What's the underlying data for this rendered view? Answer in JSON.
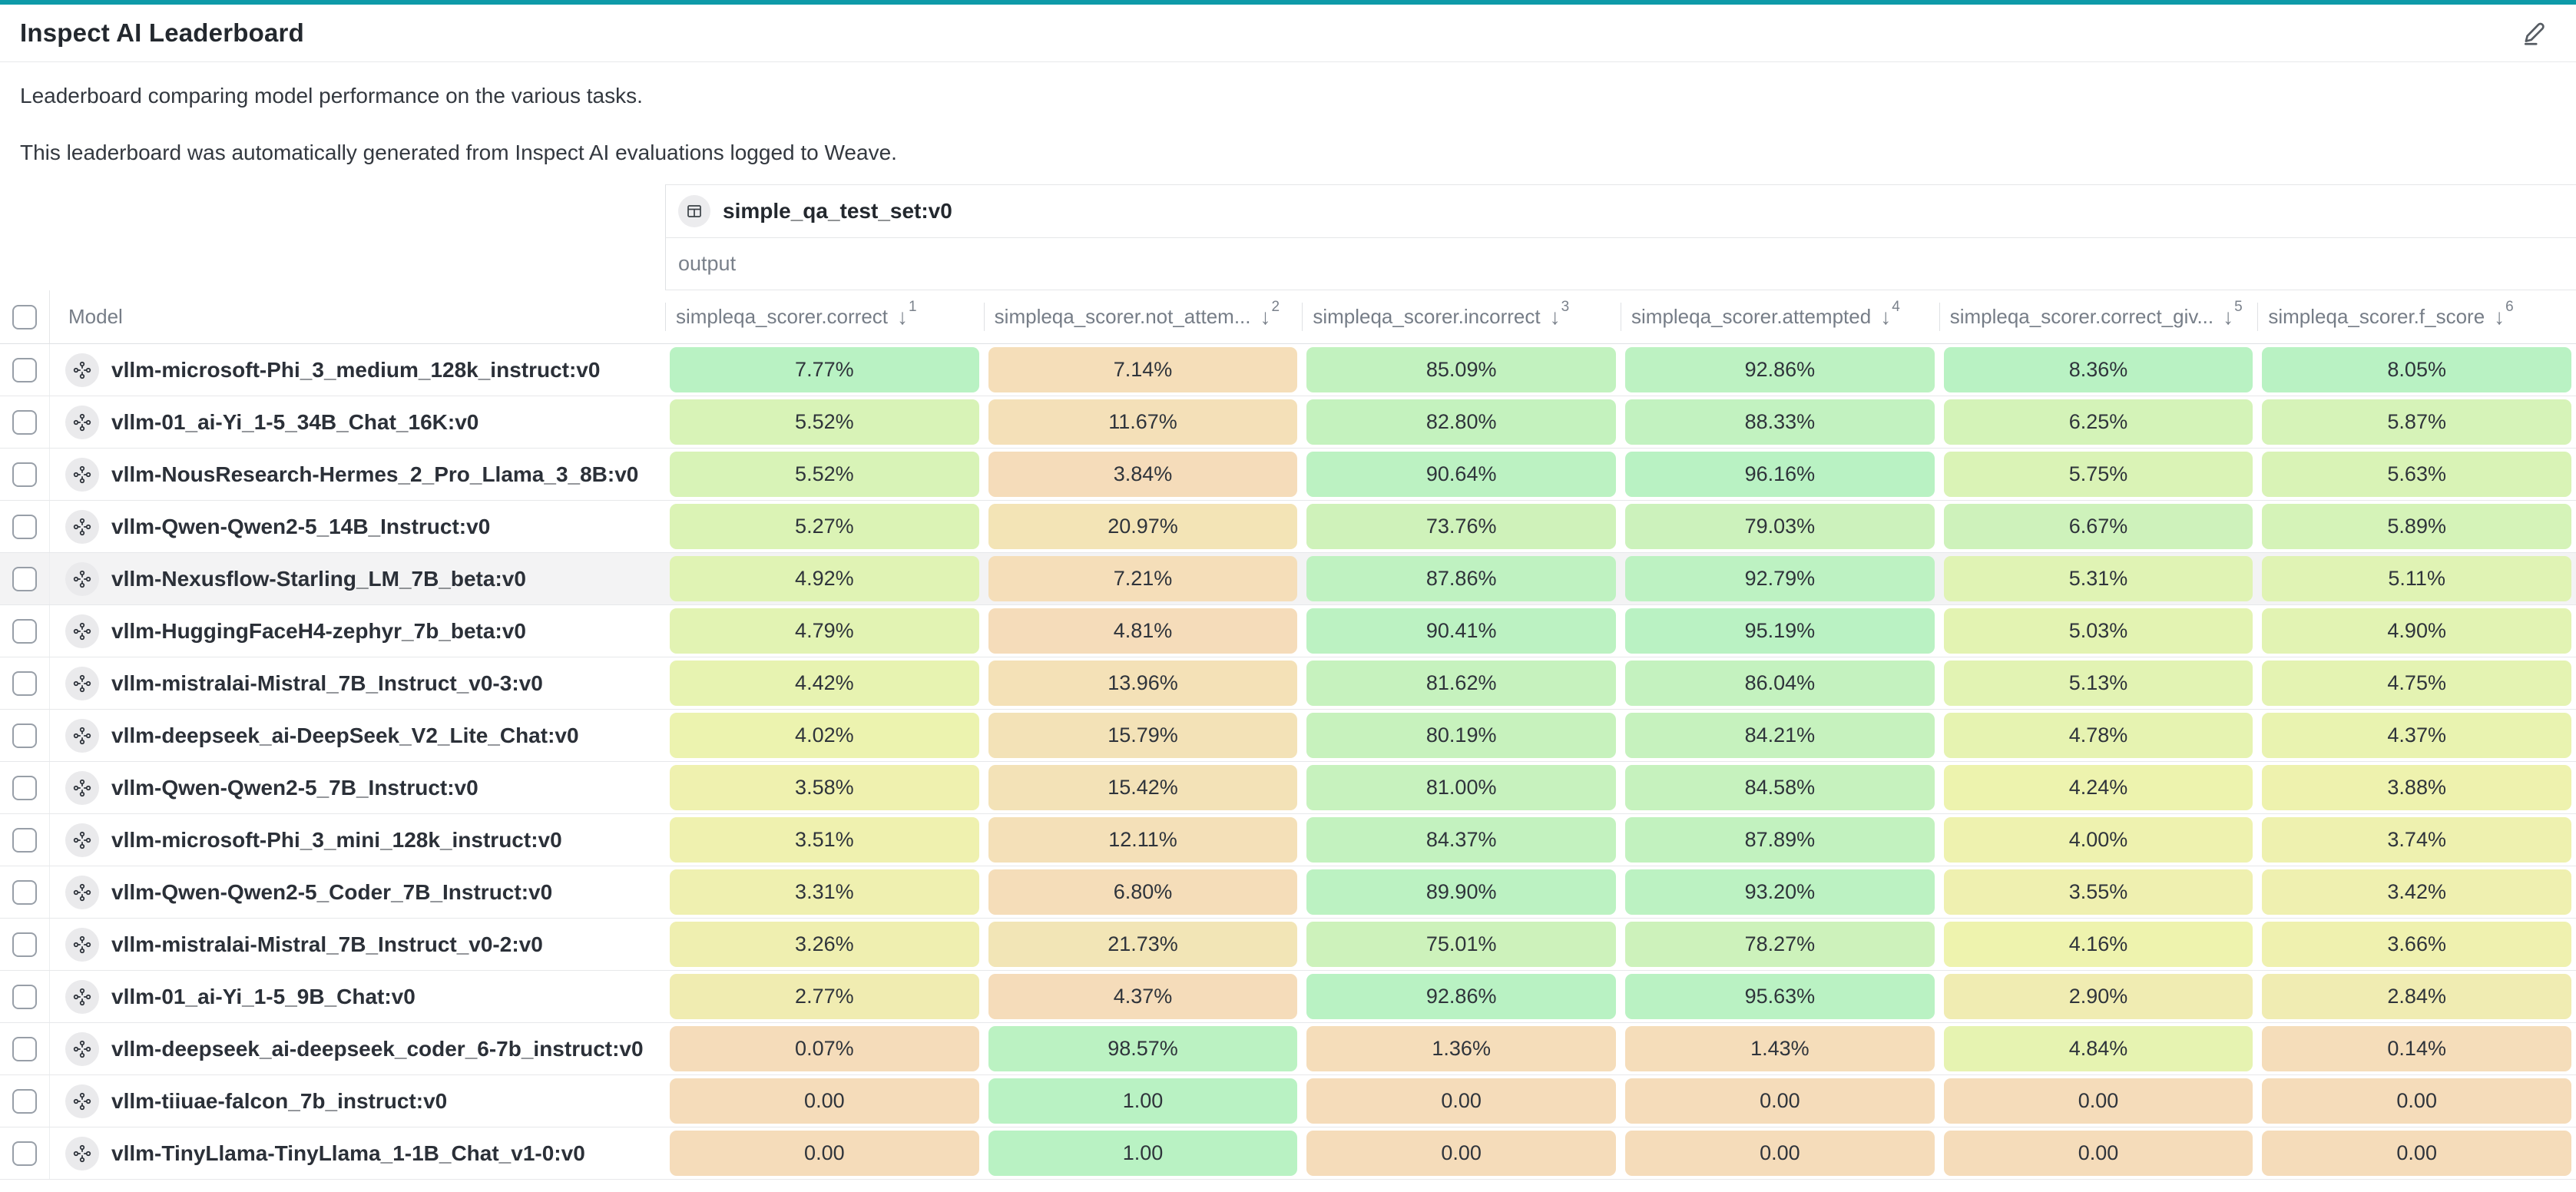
{
  "header": {
    "title": "Inspect AI Leaderboard",
    "accent_color": "#0e9aa8",
    "edit_icon": "pencil-icon"
  },
  "description": {
    "line1": "Leaderboard comparing model performance on the various tasks.",
    "line2": "This leaderboard was automatically generated from Inspect AI evaluations logged to Weave."
  },
  "table": {
    "group_header": "simple_qa_test_set:v0",
    "group_icon": "table-icon",
    "subgroup_header": "output",
    "model_column_label": "Model",
    "row_icon": "model-icon",
    "sort_icon": "arrow-down-icon",
    "hovered_row_index": 4,
    "color_scale": {
      "low": "#f5dcba",
      "mid": "#eef3ae",
      "high": "#b9f2c3"
    },
    "columns": [
      {
        "label": "simpleqa_scorer.correct",
        "sort_order": "1"
      },
      {
        "label": "simpleqa_scorer.not_attem...",
        "sort_order": "2"
      },
      {
        "label": "simpleqa_scorer.incorrect",
        "sort_order": "3"
      },
      {
        "label": "simpleqa_scorer.attempted",
        "sort_order": "4"
      },
      {
        "label": "simpleqa_scorer.correct_giv...",
        "sort_order": "5"
      },
      {
        "label": "simpleqa_scorer.f_score",
        "sort_order": "6"
      }
    ],
    "rows": [
      {
        "model": "vllm-microsoft-Phi_3_medium_128k_instruct:v0",
        "cells": [
          {
            "display": "7.77%",
            "value": 7.77
          },
          {
            "display": "7.14%",
            "value": 7.14
          },
          {
            "display": "85.09%",
            "value": 85.09
          },
          {
            "display": "92.86%",
            "value": 92.86
          },
          {
            "display": "8.36%",
            "value": 8.36
          },
          {
            "display": "8.05%",
            "value": 8.05
          }
        ]
      },
      {
        "model": "vllm-01_ai-Yi_1-5_34B_Chat_16K:v0",
        "cells": [
          {
            "display": "5.52%",
            "value": 5.52
          },
          {
            "display": "11.67%",
            "value": 11.67
          },
          {
            "display": "82.80%",
            "value": 82.8
          },
          {
            "display": "88.33%",
            "value": 88.33
          },
          {
            "display": "6.25%",
            "value": 6.25
          },
          {
            "display": "5.87%",
            "value": 5.87
          }
        ]
      },
      {
        "model": "vllm-NousResearch-Hermes_2_Pro_Llama_3_8B:v0",
        "cells": [
          {
            "display": "5.52%",
            "value": 5.52
          },
          {
            "display": "3.84%",
            "value": 3.84
          },
          {
            "display": "90.64%",
            "value": 90.64
          },
          {
            "display": "96.16%",
            "value": 96.16
          },
          {
            "display": "5.75%",
            "value": 5.75
          },
          {
            "display": "5.63%",
            "value": 5.63
          }
        ]
      },
      {
        "model": "vllm-Qwen-Qwen2-5_14B_Instruct:v0",
        "cells": [
          {
            "display": "5.27%",
            "value": 5.27
          },
          {
            "display": "20.97%",
            "value": 20.97
          },
          {
            "display": "73.76%",
            "value": 73.76
          },
          {
            "display": "79.03%",
            "value": 79.03
          },
          {
            "display": "6.67%",
            "value": 6.67
          },
          {
            "display": "5.89%",
            "value": 5.89
          }
        ]
      },
      {
        "model": "vllm-Nexusflow-Starling_LM_7B_beta:v0",
        "cells": [
          {
            "display": "4.92%",
            "value": 4.92
          },
          {
            "display": "7.21%",
            "value": 7.21
          },
          {
            "display": "87.86%",
            "value": 87.86
          },
          {
            "display": "92.79%",
            "value": 92.79
          },
          {
            "display": "5.31%",
            "value": 5.31
          },
          {
            "display": "5.11%",
            "value": 5.11
          }
        ]
      },
      {
        "model": "vllm-HuggingFaceH4-zephyr_7b_beta:v0",
        "cells": [
          {
            "display": "4.79%",
            "value": 4.79
          },
          {
            "display": "4.81%",
            "value": 4.81
          },
          {
            "display": "90.41%",
            "value": 90.41
          },
          {
            "display": "95.19%",
            "value": 95.19
          },
          {
            "display": "5.03%",
            "value": 5.03
          },
          {
            "display": "4.90%",
            "value": 4.9
          }
        ]
      },
      {
        "model": "vllm-mistralai-Mistral_7B_Instruct_v0-3:v0",
        "cells": [
          {
            "display": "4.42%",
            "value": 4.42
          },
          {
            "display": "13.96%",
            "value": 13.96
          },
          {
            "display": "81.62%",
            "value": 81.62
          },
          {
            "display": "86.04%",
            "value": 86.04
          },
          {
            "display": "5.13%",
            "value": 5.13
          },
          {
            "display": "4.75%",
            "value": 4.75
          }
        ]
      },
      {
        "model": "vllm-deepseek_ai-DeepSeek_V2_Lite_Chat:v0",
        "cells": [
          {
            "display": "4.02%",
            "value": 4.02
          },
          {
            "display": "15.79%",
            "value": 15.79
          },
          {
            "display": "80.19%",
            "value": 80.19
          },
          {
            "display": "84.21%",
            "value": 84.21
          },
          {
            "display": "4.78%",
            "value": 4.78
          },
          {
            "display": "4.37%",
            "value": 4.37
          }
        ]
      },
      {
        "model": "vllm-Qwen-Qwen2-5_7B_Instruct:v0",
        "cells": [
          {
            "display": "3.58%",
            "value": 3.58
          },
          {
            "display": "15.42%",
            "value": 15.42
          },
          {
            "display": "81.00%",
            "value": 81.0
          },
          {
            "display": "84.58%",
            "value": 84.58
          },
          {
            "display": "4.24%",
            "value": 4.24
          },
          {
            "display": "3.88%",
            "value": 3.88
          }
        ]
      },
      {
        "model": "vllm-microsoft-Phi_3_mini_128k_instruct:v0",
        "cells": [
          {
            "display": "3.51%",
            "value": 3.51
          },
          {
            "display": "12.11%",
            "value": 12.11
          },
          {
            "display": "84.37%",
            "value": 84.37
          },
          {
            "display": "87.89%",
            "value": 87.89
          },
          {
            "display": "4.00%",
            "value": 4.0
          },
          {
            "display": "3.74%",
            "value": 3.74
          }
        ]
      },
      {
        "model": "vllm-Qwen-Qwen2-5_Coder_7B_Instruct:v0",
        "cells": [
          {
            "display": "3.31%",
            "value": 3.31
          },
          {
            "display": "6.80%",
            "value": 6.8
          },
          {
            "display": "89.90%",
            "value": 89.9
          },
          {
            "display": "93.20%",
            "value": 93.2
          },
          {
            "display": "3.55%",
            "value": 3.55
          },
          {
            "display": "3.42%",
            "value": 3.42
          }
        ]
      },
      {
        "model": "vllm-mistralai-Mistral_7B_Instruct_v0-2:v0",
        "cells": [
          {
            "display": "3.26%",
            "value": 3.26
          },
          {
            "display": "21.73%",
            "value": 21.73
          },
          {
            "display": "75.01%",
            "value": 75.01
          },
          {
            "display": "78.27%",
            "value": 78.27
          },
          {
            "display": "4.16%",
            "value": 4.16
          },
          {
            "display": "3.66%",
            "value": 3.66
          }
        ]
      },
      {
        "model": "vllm-01_ai-Yi_1-5_9B_Chat:v0",
        "cells": [
          {
            "display": "2.77%",
            "value": 2.77
          },
          {
            "display": "4.37%",
            "value": 4.37
          },
          {
            "display": "92.86%",
            "value": 92.86
          },
          {
            "display": "95.63%",
            "value": 95.63
          },
          {
            "display": "2.90%",
            "value": 2.9
          },
          {
            "display": "2.84%",
            "value": 2.84
          }
        ]
      },
      {
        "model": "vllm-deepseek_ai-deepseek_coder_6-7b_instruct:v0",
        "cells": [
          {
            "display": "0.07%",
            "value": 0.07
          },
          {
            "display": "98.57%",
            "value": 98.57
          },
          {
            "display": "1.36%",
            "value": 1.36
          },
          {
            "display": "1.43%",
            "value": 1.43
          },
          {
            "display": "4.84%",
            "value": 4.84
          },
          {
            "display": "0.14%",
            "value": 0.14
          }
        ]
      },
      {
        "model": "vllm-tiiuae-falcon_7b_instruct:v0",
        "cells": [
          {
            "display": "0.00",
            "value": 0
          },
          {
            "display": "1.00",
            "value": 100
          },
          {
            "display": "0.00",
            "value": 0
          },
          {
            "display": "0.00",
            "value": 0
          },
          {
            "display": "0.00",
            "value": 0
          },
          {
            "display": "0.00",
            "value": 0
          }
        ]
      },
      {
        "model": "vllm-TinyLlama-TinyLlama_1-1B_Chat_v1-0:v0",
        "cells": [
          {
            "display": "0.00",
            "value": 0
          },
          {
            "display": "1.00",
            "value": 100
          },
          {
            "display": "0.00",
            "value": 0
          },
          {
            "display": "0.00",
            "value": 0
          },
          {
            "display": "0.00",
            "value": 0
          },
          {
            "display": "0.00",
            "value": 0
          }
        ]
      }
    ]
  }
}
